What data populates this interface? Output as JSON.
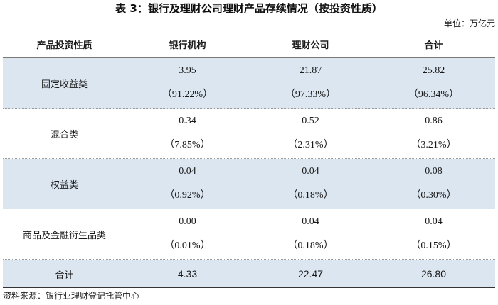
{
  "title": "表 3：银行及理财公司理财产品存续情况（按投资性质）",
  "unit": "单位：万亿元",
  "header": [
    "产品投资性质",
    "银行机构",
    "理财公司",
    "合计"
  ],
  "rows": [
    {
      "label": "固定收益类",
      "cells": [
        {
          "value": "3.95",
          "pct": "（91.22%）"
        },
        {
          "value": "21.87",
          "pct": "（97.33%）"
        },
        {
          "value": "25.82",
          "pct": "（96.34%）"
        }
      ]
    },
    {
      "label": "混合类",
      "cells": [
        {
          "value": "0.34",
          "pct": "（7.85%）"
        },
        {
          "value": "0.52",
          "pct": "（2.31%）"
        },
        {
          "value": "0.86",
          "pct": "（3.21%）"
        }
      ]
    },
    {
      "label": "权益类",
      "cells": [
        {
          "value": "0.04",
          "pct": "（0.92%）"
        },
        {
          "value": "0.04",
          "pct": "（0.18%）"
        },
        {
          "value": "0.08",
          "pct": "（0.30%）"
        }
      ]
    },
    {
      "label": "商品及金融衍生品类",
      "cells": [
        {
          "value": "0.00",
          "pct": "（0.01%）"
        },
        {
          "value": "0.04",
          "pct": "（0.18%）"
        },
        {
          "value": "0.04",
          "pct": "（0.15%）"
        }
      ]
    }
  ],
  "total": {
    "label": "合计",
    "values": [
      "4.33",
      "22.47",
      "26.80"
    ]
  },
  "source": "资料来源：银行业理财登记托管中心",
  "colors": {
    "shaded_row": "#dce6f1",
    "rule": "#333333"
  }
}
